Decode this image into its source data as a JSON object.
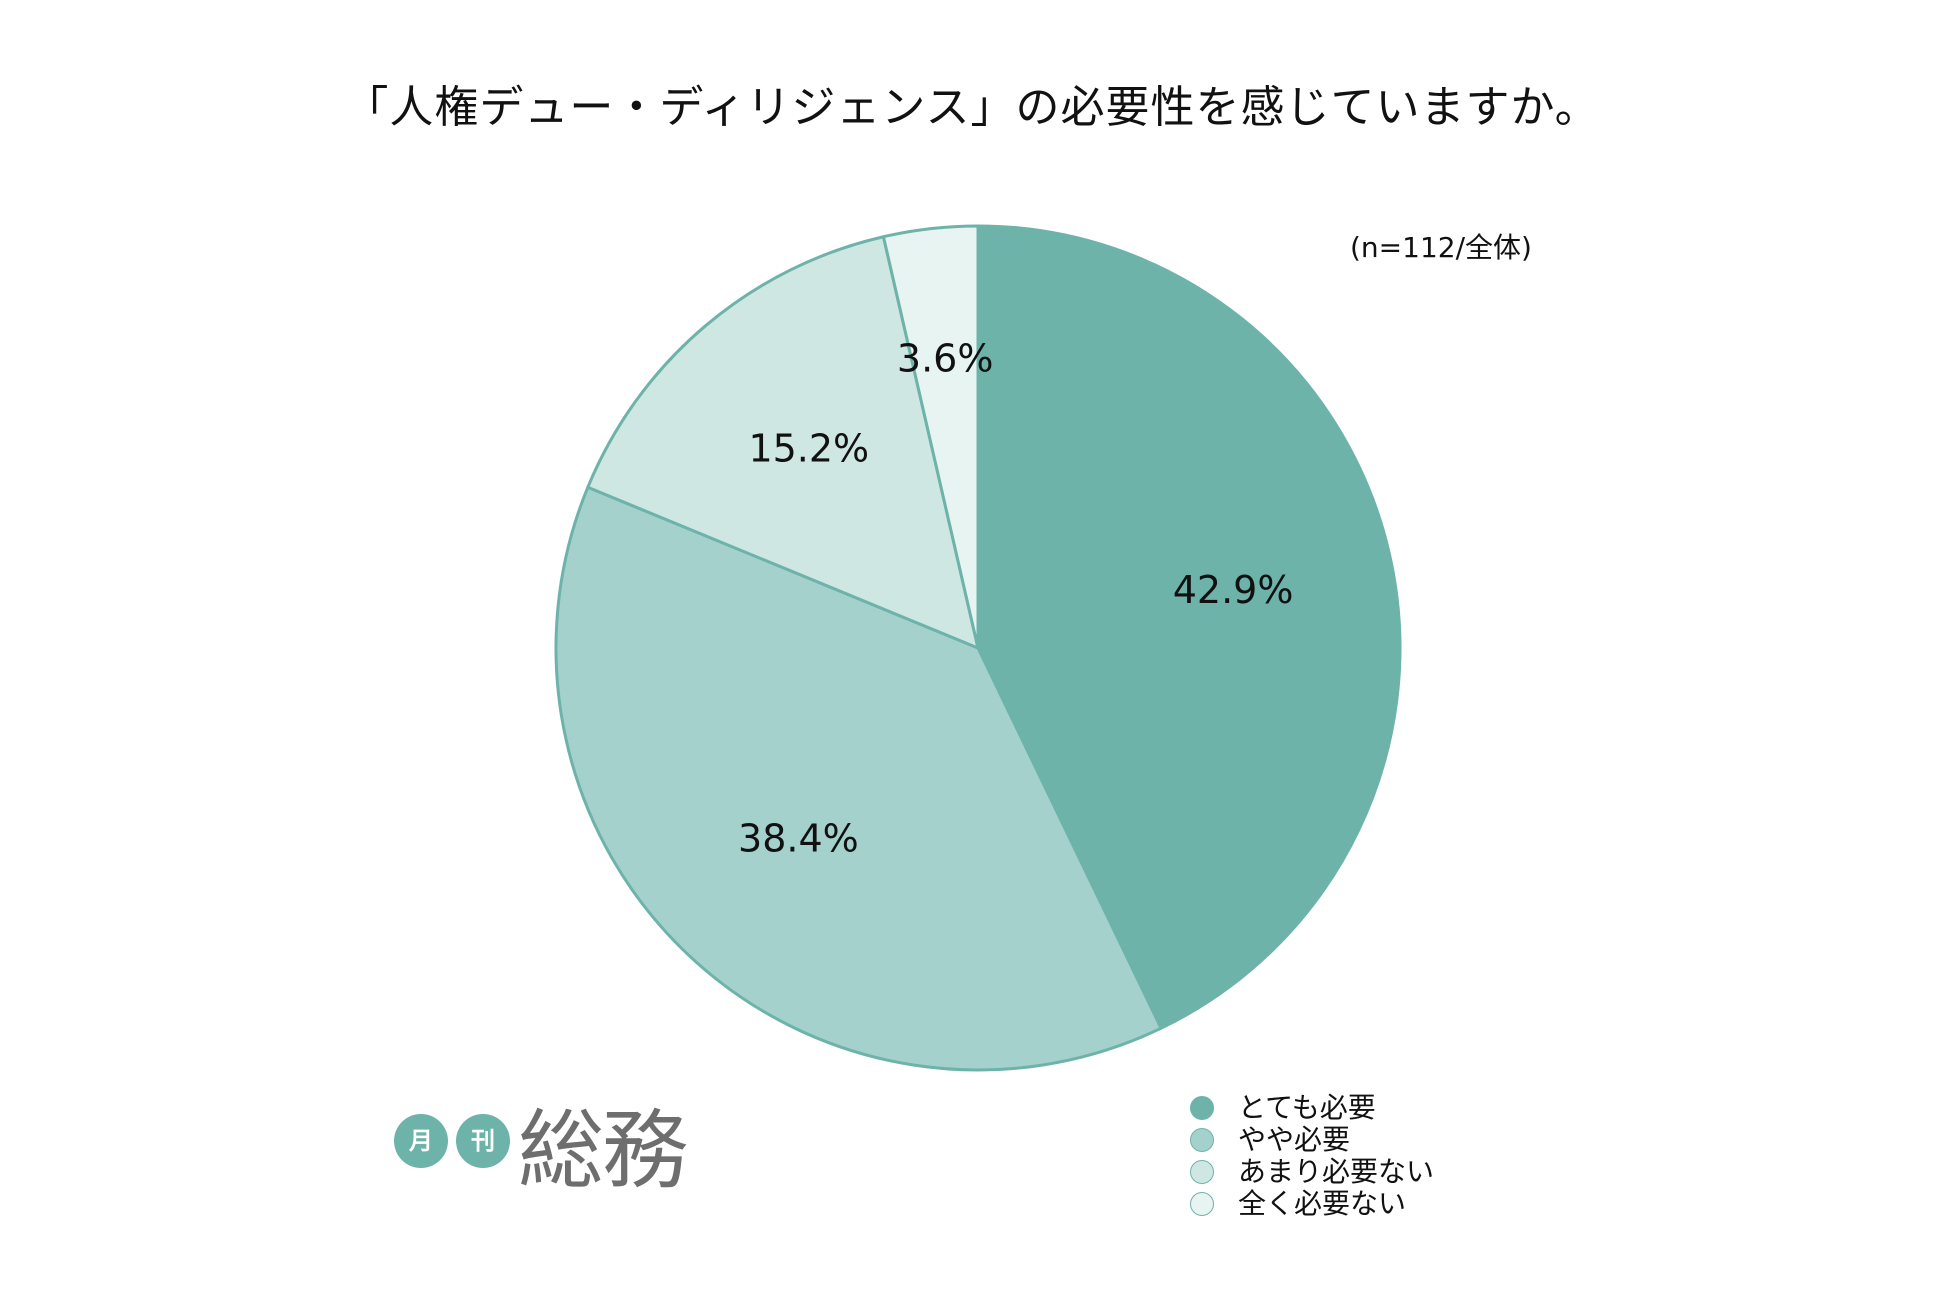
{
  "chart_data": {
    "type": "pie",
    "title": "「人権デュー・ディリジェンス」の必要性を感じていますか。",
    "note": "(n=112/全体)",
    "slices": [
      {
        "label": "とても必要",
        "value": 42.9,
        "display": "42.9%",
        "color": "#6db3aa"
      },
      {
        "label": "やや必要",
        "value": 38.4,
        "display": "38.4%",
        "color": "#a5d1cc"
      },
      {
        "label": "あまり必要ない",
        "value": 15.2,
        "display": "15.2%",
        "color": "#cfe7e3"
      },
      {
        "label": "全く必要ない",
        "value": 3.6,
        "display": "3.6%",
        "color": "#e8f4f2"
      }
    ],
    "start": "12 o'clock",
    "direction": "clockwise",
    "legend_position": "bottom-right",
    "slice_edge_color": "#6db3aa"
  },
  "logo": {
    "badge_1": "月",
    "badge_2": "刊",
    "word": "総務",
    "badge_color": "#6db3aa",
    "word_color": "#6e6e6e"
  }
}
